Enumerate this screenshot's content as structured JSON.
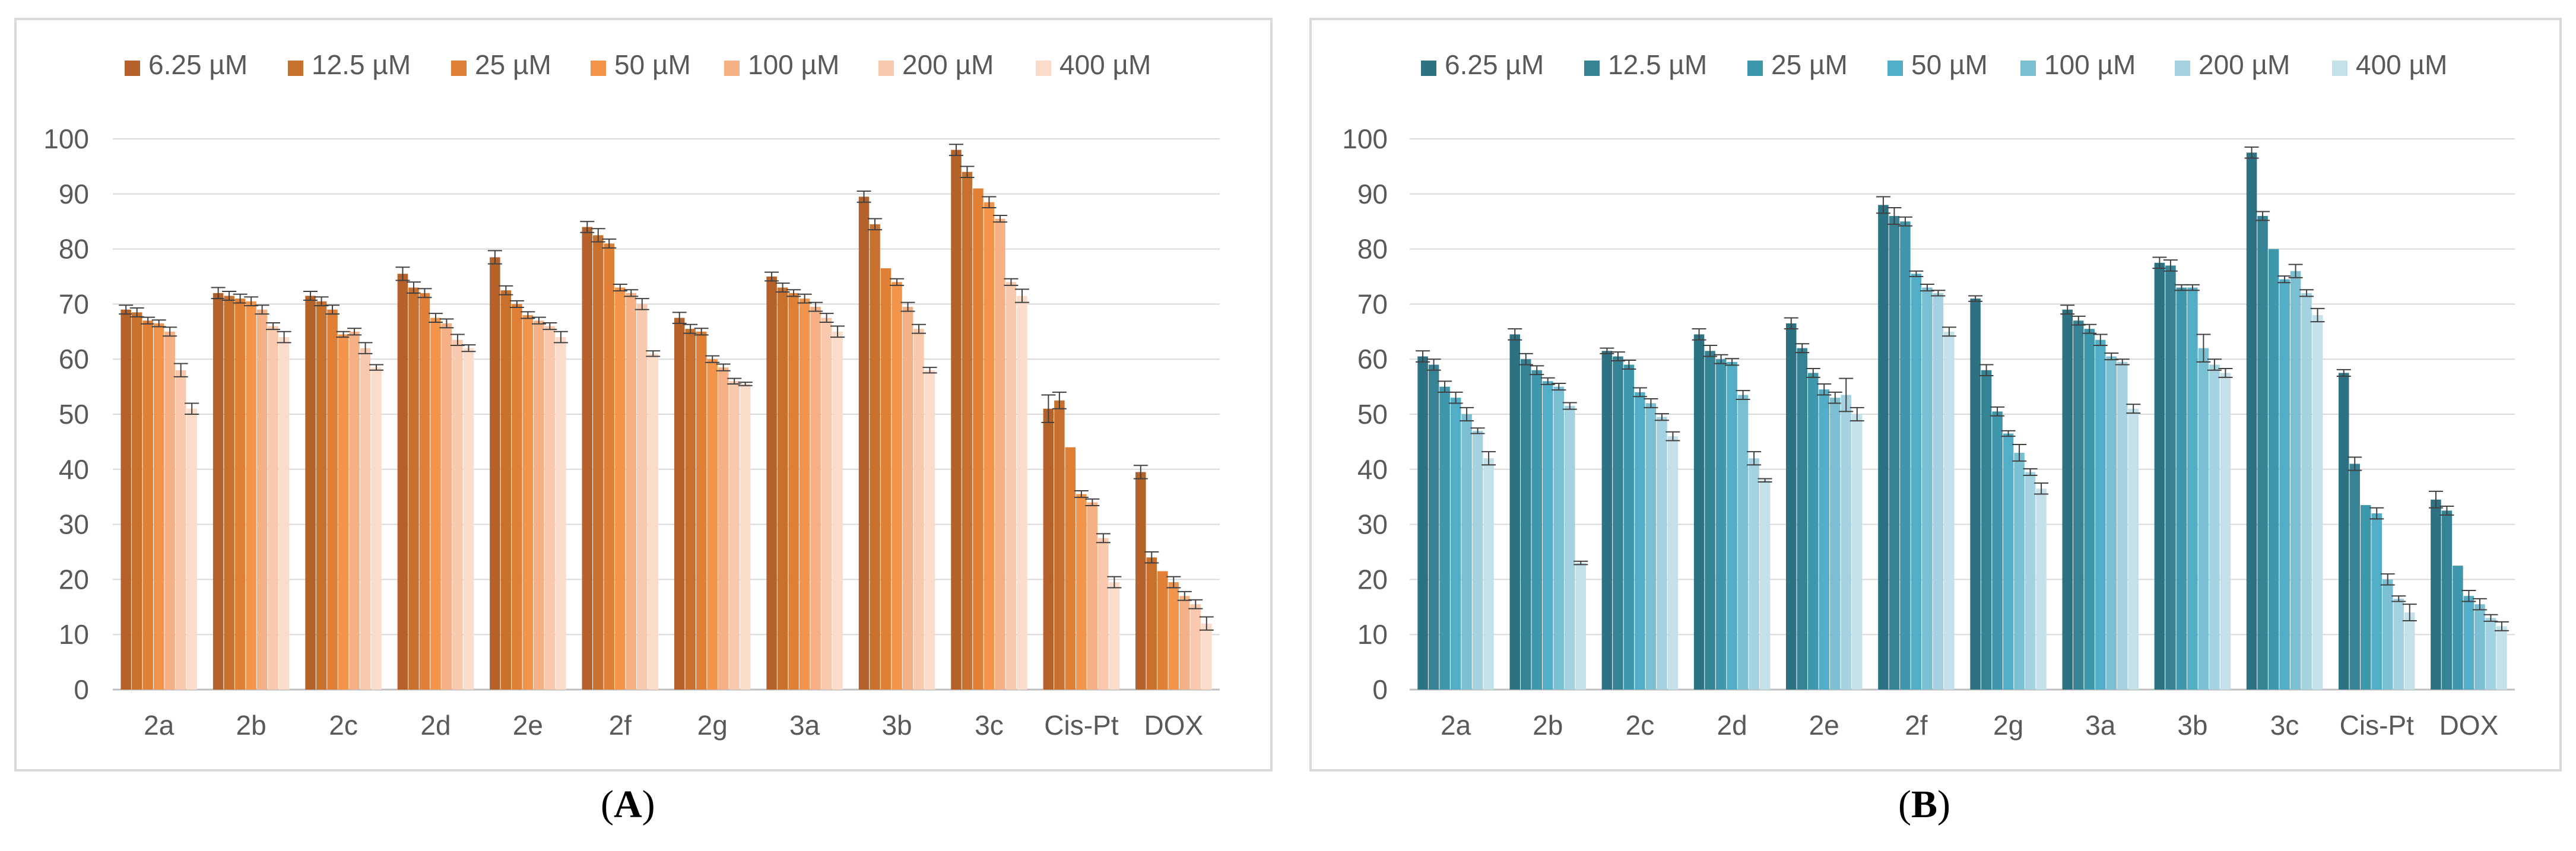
{
  "panel_labels": [
    "A",
    "B"
  ],
  "chart_data": [
    {
      "type": "bar",
      "panel": "A",
      "title": "",
      "xlabel": "",
      "ylabel": "",
      "ylim": [
        0,
        100
      ],
      "yticks": [
        0,
        10,
        20,
        30,
        40,
        50,
        60,
        70,
        80,
        90,
        100
      ],
      "grid": true,
      "legend_position": "top",
      "colors": [
        "#b5622a",
        "#c8712f",
        "#e07f36",
        "#f2944a",
        "#f5b185",
        "#f9c9ad",
        "#fbdccb"
      ],
      "categories": [
        "2a",
        "2b",
        "2c",
        "2d",
        "2e",
        "2f",
        "2g",
        "3a",
        "3b",
        "3c",
        "Cis-Pt",
        "DOX"
      ],
      "series": [
        {
          "name": "6.25 µM",
          "values": [
            69,
            72,
            71.5,
            75.5,
            78.5,
            84,
            67.5,
            75,
            89.5,
            98,
            51,
            39.5
          ],
          "errors": [
            0.8,
            1.0,
            0.8,
            1.2,
            1.2,
            1.0,
            1.0,
            0.8,
            1.0,
            1.0,
            2.5,
            1.2
          ]
        },
        {
          "name": "12.5 µM",
          "values": [
            68.5,
            71.5,
            70.5,
            73,
            72.5,
            82.5,
            65.5,
            73,
            84.5,
            94,
            52.5,
            24
          ],
          "errors": [
            0.8,
            0.8,
            0.8,
            1.0,
            0.8,
            1.2,
            0.8,
            0.8,
            1.0,
            1.0,
            1.5,
            1.0
          ]
        },
        {
          "name": "25 µM",
          "values": [
            67,
            71,
            69,
            72,
            70,
            81,
            65,
            72,
            76.5,
            91,
            44,
            21.5
          ],
          "errors": [
            0.6,
            0.8,
            0.8,
            0.8,
            0.6,
            0.8,
            0.6,
            0.6,
            0,
            0,
            0,
            0
          ]
        },
        {
          "name": "50 µM",
          "values": [
            66.5,
            70.5,
            64.5,
            67.5,
            68,
            73,
            60,
            71,
            74,
            88.5,
            35.5,
            19.5
          ],
          "errors": [
            0.6,
            0.8,
            0.5,
            0.8,
            0.6,
            0.6,
            0.6,
            0.8,
            0.6,
            1.0,
            0.6,
            1.0
          ]
        },
        {
          "name": "100 µM",
          "values": [
            65,
            69,
            65,
            66.5,
            67,
            72,
            58.5,
            69.5,
            69.5,
            85.5,
            34,
            17
          ],
          "errors": [
            0.8,
            0.8,
            0.6,
            0.8,
            0.6,
            0.6,
            0.6,
            0.8,
            0.8,
            0.6,
            0.6,
            0.8
          ]
        },
        {
          "name": "200 µM",
          "values": [
            58,
            66,
            62,
            63.5,
            66,
            70,
            56,
            67.5,
            65.5,
            74,
            27.5,
            15.5
          ],
          "errors": [
            1.2,
            0.6,
            1.0,
            1.0,
            0.6,
            1.0,
            0.5,
            0.8,
            0.8,
            0.6,
            0.8,
            0.8
          ]
        },
        {
          "name": "400 µM",
          "values": [
            51,
            64,
            58.5,
            62,
            64,
            61,
            55.5,
            65,
            58,
            71.5,
            19.5,
            12
          ],
          "errors": [
            1.0,
            1.0,
            0.5,
            0.6,
            1.0,
            0.5,
            0.3,
            1.0,
            0.5,
            1.2,
            1.0,
            1.2
          ]
        }
      ]
    },
    {
      "type": "bar",
      "panel": "B",
      "title": "",
      "xlabel": "",
      "ylabel": "",
      "ylim": [
        0,
        100
      ],
      "yticks": [
        0,
        10,
        20,
        30,
        40,
        50,
        60,
        70,
        80,
        90,
        100
      ],
      "grid": true,
      "legend_position": "top",
      "colors": [
        "#2d7283",
        "#368396",
        "#3f97ac",
        "#52adc6",
        "#7bbfd3",
        "#a4d2e0",
        "#c4e1ea"
      ],
      "categories": [
        "2a",
        "2b",
        "2c",
        "2d",
        "2e",
        "2f",
        "2g",
        "3a",
        "3b",
        "3c",
        "Cis-Pt",
        "DOX"
      ],
      "series": [
        {
          "name": "6.25 µM",
          "values": [
            60.5,
            64.5,
            61.5,
            64.5,
            66.5,
            88,
            71,
            69,
            77.5,
            97.5,
            57.5,
            34.5
          ],
          "errors": [
            1.0,
            1.0,
            0.5,
            1.0,
            1.0,
            1.5,
            0.5,
            0.8,
            1.0,
            1.0,
            0.6,
            1.5
          ]
        },
        {
          "name": "12.5 µM",
          "values": [
            59,
            60,
            60.5,
            61.5,
            62,
            86,
            58,
            67,
            77,
            86,
            41,
            32.5
          ],
          "errors": [
            1.0,
            1.0,
            0.8,
            1.0,
            0.8,
            1.5,
            1.0,
            0.8,
            1.0,
            0.8,
            1.2,
            0.8
          ]
        },
        {
          "name": "25 µM",
          "values": [
            55,
            58,
            59,
            60,
            57.5,
            85,
            50.5,
            65.5,
            73,
            80,
            33.5,
            22.5
          ],
          "errors": [
            1.0,
            0.8,
            0.8,
            0.8,
            0.8,
            0.8,
            0.8,
            0.8,
            0.5,
            0,
            0,
            0
          ]
        },
        {
          "name": "50 µM",
          "values": [
            53,
            56,
            54,
            59.5,
            54.5,
            75.5,
            46.5,
            63.5,
            73,
            74.5,
            32,
            17
          ],
          "errors": [
            1.0,
            0.6,
            0.8,
            0.6,
            1.0,
            0.5,
            0.5,
            1.0,
            0.5,
            0.6,
            1.0,
            1.0
          ]
        },
        {
          "name": "100 µM",
          "values": [
            50,
            55,
            52,
            53.5,
            53,
            73,
            43,
            60.5,
            62,
            76,
            20,
            15.5
          ],
          "errors": [
            1.2,
            0.6,
            0.8,
            0.8,
            1.0,
            0.6,
            1.5,
            0.6,
            2.5,
            1.2,
            1.0,
            1.0
          ]
        },
        {
          "name": "200 µM",
          "values": [
            47,
            51.5,
            49.5,
            42,
            53.5,
            72,
            39.5,
            59.5,
            59,
            72,
            16.5,
            13
          ],
          "errors": [
            0.5,
            0.6,
            0.6,
            1.2,
            3.0,
            0.5,
            0.6,
            0.5,
            1.0,
            0.6,
            0.5,
            0.6
          ]
        },
        {
          "name": "400 µM",
          "values": [
            42,
            23,
            46,
            38,
            50,
            65,
            36.5,
            51,
            57.5,
            68,
            14,
            11.5
          ],
          "errors": [
            1.2,
            0.3,
            0.8,
            0.3,
            1.2,
            0.8,
            1.0,
            0.8,
            0.8,
            1.2,
            1.5,
            0.8
          ]
        }
      ]
    }
  ]
}
